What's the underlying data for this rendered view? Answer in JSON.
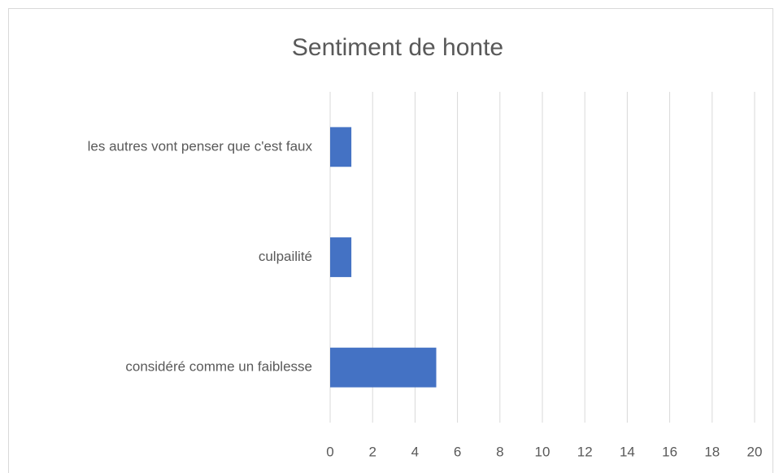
{
  "chart_data": {
    "type": "bar",
    "orientation": "horizontal",
    "title": "Sentiment de honte",
    "categories": [
      "les autres vont penser que c'est faux",
      "culpailité",
      "considéré comme un faiblesse"
    ],
    "values": [
      1,
      1,
      5
    ],
    "color": "#4472c4",
    "xlim": [
      0,
      20
    ],
    "xticks": [
      0,
      2,
      4,
      6,
      8,
      10,
      12,
      14,
      16,
      18,
      20
    ],
    "grid": true
  }
}
